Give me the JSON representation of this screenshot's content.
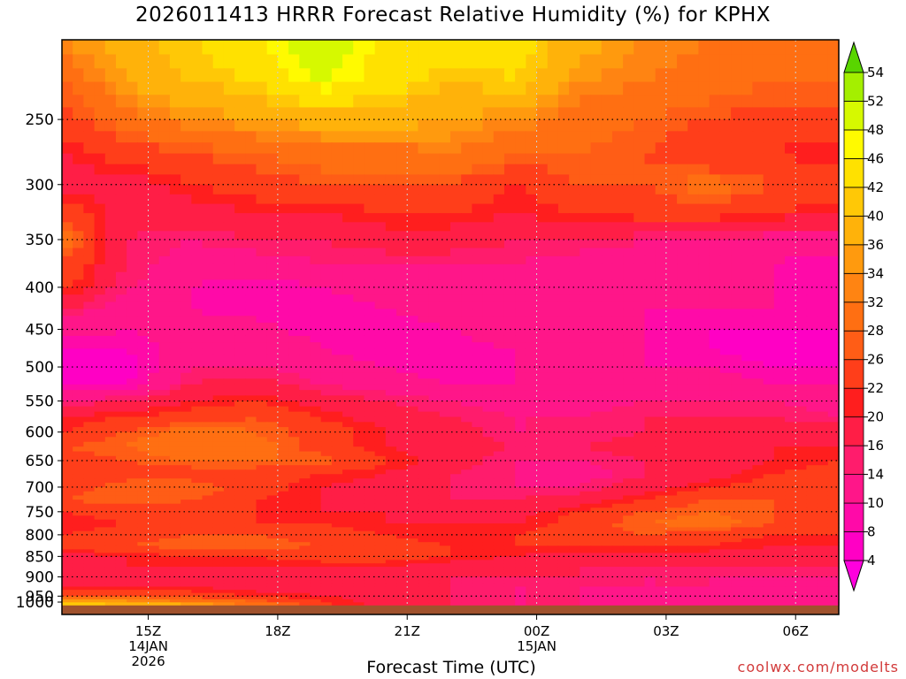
{
  "title": "2026011413 HRRR Forecast Relative Humidity (%) for KPHX",
  "credit": "coolwx.com/modelts",
  "chart_data": {
    "type": "heatmap",
    "title": "2026011413 HRRR Forecast Relative Humidity (%) for KPHX",
    "xlabel": "Forecast Time (UTC)",
    "ylabel": "",
    "x_ticks": [
      {
        "label": "15Z",
        "hour": 2,
        "date": "14JAN",
        "year": "2026"
      },
      {
        "label": "18Z",
        "hour": 5
      },
      {
        "label": "21Z",
        "hour": 8
      },
      {
        "label": "00Z",
        "hour": 11,
        "date": "15JAN"
      },
      {
        "label": "03Z",
        "hour": 14
      },
      {
        "label": "06Z",
        "hour": 17
      }
    ],
    "x_range_hours": [
      0,
      18
    ],
    "y_axis": "pressure (hPa), log scale",
    "y_range": [
      1000,
      200
    ],
    "y_ticks": [
      250,
      300,
      350,
      400,
      450,
      500,
      550,
      600,
      650,
      700,
      750,
      800,
      850,
      900,
      950,
      1000
    ],
    "grid": "dotted",
    "ground_level_hPa": 975,
    "colorbar": {
      "levels": [
        4,
        8,
        10,
        14,
        16,
        20,
        22,
        26,
        28,
        32,
        34,
        36,
        40,
        42,
        46,
        48,
        52,
        54
      ],
      "colors": [
        "#ff00dd",
        "#ff00c4",
        "#ff0aa8",
        "#ff1689",
        "#ff1c6c",
        "#ff1e46",
        "#ff1e1e",
        "#ff3e1a",
        "#ff5d16",
        "#ff6f12",
        "#ff8412",
        "#ff9a0e",
        "#ffb20a",
        "#ffc806",
        "#ffe100",
        "#fffa00",
        "#d6f900",
        "#a4ef00",
        "#59d500"
      ]
    },
    "grid_values": {
      "x_hours": [
        0,
        1.5,
        3,
        4.5,
        6,
        7.5,
        9,
        10.5,
        12,
        13.5,
        15,
        16.5,
        18
      ],
      "pressure_levels": [
        200,
        225,
        250,
        275,
        300,
        325,
        350,
        375,
        400,
        425,
        450,
        475,
        500,
        525,
        550,
        575,
        600,
        625,
        650,
        675,
        700,
        725,
        750,
        775,
        800,
        825,
        850,
        875,
        900,
        925,
        950,
        975
      ],
      "rh": [
        [
          34,
          38,
          42,
          46,
          52,
          45,
          44,
          44,
          38,
          34,
          32,
          31,
          30
        ],
        [
          28,
          36,
          40,
          42,
          48,
          44,
          40,
          42,
          34,
          32,
          30,
          28,
          28
        ],
        [
          24,
          30,
          34,
          36,
          38,
          38,
          36,
          34,
          30,
          28,
          26,
          24,
          24
        ],
        [
          20,
          24,
          26,
          28,
          30,
          30,
          32,
          28,
          28,
          26,
          22,
          22,
          20
        ],
        [
          18,
          18,
          22,
          24,
          26,
          26,
          26,
          22,
          26,
          26,
          30,
          26,
          24
        ],
        [
          26,
          18,
          18,
          20,
          20,
          22,
          22,
          20,
          22,
          24,
          24,
          22,
          20
        ],
        [
          30,
          16,
          14,
          16,
          16,
          18,
          18,
          16,
          16,
          14,
          14,
          12,
          12
        ],
        [
          26,
          16,
          12,
          12,
          14,
          14,
          14,
          14,
          12,
          12,
          10,
          10,
          8
        ],
        [
          24,
          14,
          10,
          8,
          10,
          12,
          12,
          12,
          12,
          12,
          10,
          10,
          8
        ],
        [
          16,
          12,
          10,
          8,
          8,
          10,
          12,
          14,
          12,
          10,
          10,
          10,
          8
        ],
        [
          12,
          10,
          12,
          12,
          8,
          8,
          10,
          14,
          12,
          10,
          8,
          8,
          8
        ],
        [
          8,
          8,
          12,
          14,
          10,
          8,
          8,
          10,
          12,
          10,
          8,
          6,
          6
        ],
        [
          6,
          6,
          14,
          14,
          12,
          10,
          8,
          10,
          12,
          10,
          10,
          8,
          8
        ],
        [
          8,
          8,
          16,
          18,
          14,
          12,
          10,
          10,
          12,
          12,
          12,
          10,
          10
        ],
        [
          14,
          16,
          20,
          22,
          18,
          16,
          14,
          12,
          12,
          14,
          14,
          14,
          12
        ],
        [
          20,
          22,
          24,
          26,
          22,
          18,
          16,
          14,
          14,
          16,
          16,
          16,
          14
        ],
        [
          22,
          26,
          30,
          28,
          24,
          20,
          18,
          14,
          14,
          16,
          18,
          18,
          18
        ],
        [
          26,
          28,
          32,
          30,
          24,
          20,
          18,
          16,
          16,
          18,
          20,
          20,
          20
        ],
        [
          24,
          26,
          28,
          28,
          28,
          22,
          18,
          14,
          14,
          16,
          18,
          20,
          22
        ],
        [
          22,
          24,
          24,
          24,
          22,
          20,
          16,
          14,
          12,
          16,
          18,
          22,
          24
        ],
        [
          24,
          28,
          28,
          24,
          20,
          18,
          16,
          14,
          14,
          18,
          22,
          24,
          24
        ],
        [
          26,
          28,
          26,
          22,
          20,
          18,
          16,
          16,
          18,
          22,
          26,
          26,
          24
        ],
        [
          22,
          24,
          24,
          22,
          20,
          20,
          18,
          18,
          22,
          26,
          28,
          26,
          22
        ],
        [
          20,
          22,
          22,
          22,
          22,
          20,
          20,
          20,
          24,
          28,
          30,
          26,
          24
        ],
        [
          22,
          24,
          26,
          26,
          24,
          22,
          20,
          22,
          24,
          26,
          24,
          22,
          22
        ],
        [
          24,
          26,
          28,
          28,
          26,
          24,
          22,
          22,
          22,
          22,
          22,
          20,
          20
        ],
        [
          18,
          20,
          22,
          22,
          24,
          24,
          22,
          20,
          18,
          18,
          18,
          18,
          18
        ],
        [
          20,
          20,
          20,
          20,
          20,
          20,
          18,
          16,
          16,
          16,
          16,
          16,
          16
        ],
        [
          18,
          18,
          18,
          18,
          18,
          16,
          16,
          16,
          16,
          14,
          14,
          14,
          14
        ],
        [
          20,
          20,
          20,
          18,
          18,
          16,
          16,
          14,
          14,
          14,
          14,
          12,
          12
        ],
        [
          26,
          26,
          24,
          22,
          20,
          18,
          16,
          14,
          14,
          12,
          12,
          12,
          12
        ],
        [
          44,
          42,
          38,
          32,
          24,
          18,
          16,
          14,
          14,
          12,
          12,
          12,
          12
        ]
      ]
    }
  }
}
